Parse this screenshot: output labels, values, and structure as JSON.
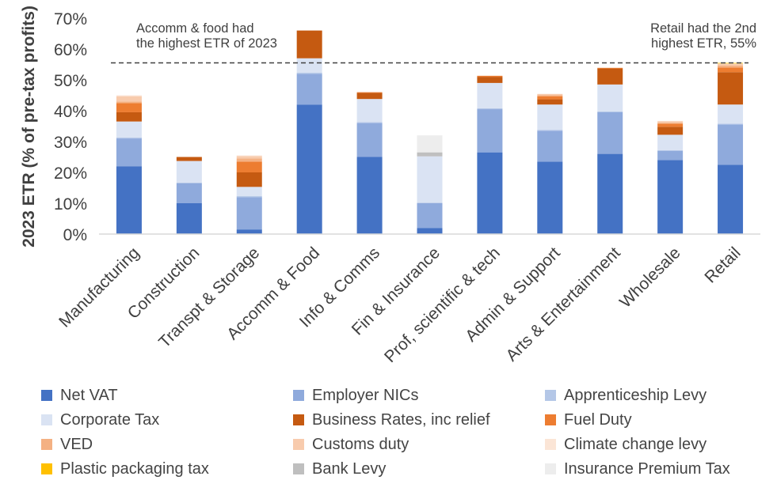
{
  "chart_data": {
    "type": "bar",
    "stacked": true,
    "ylabel": "2023 ETR (% of pre-tax profits)",
    "xlabel": "",
    "ylim": [
      0,
      70
    ],
    "yticks": [
      "0%",
      "10%",
      "20%",
      "30%",
      "40%",
      "50%",
      "60%",
      "70%"
    ],
    "grid": false,
    "legend_position": "bottom",
    "categories": [
      "Manufacturing",
      "Construction",
      "Transpt & Storage",
      "Accomm & Food",
      "Info & Comms",
      "Fin & Insurance",
      "Prof, scientific & tech",
      "Admin & Support",
      "Arts & Entertainment",
      "Wholesale",
      "Retail"
    ],
    "series": [
      {
        "name": "Net VAT",
        "color": "#4472C4",
        "values": [
          22,
          10,
          1.5,
          42,
          25,
          2,
          26.5,
          23.5,
          26,
          24,
          22.5
        ]
      },
      {
        "name": "Employer NICs",
        "color": "#8FAADC",
        "values": [
          9,
          6.5,
          10.5,
          10,
          11,
          8,
          14,
          10,
          13.5,
          3,
          13
        ]
      },
      {
        "name": "Apprenticeship Levy",
        "color": "#B4C7E7",
        "values": [
          0.3,
          0.2,
          0.3,
          0.3,
          0.3,
          0.2,
          0.3,
          0.3,
          0.3,
          0.2,
          0.3
        ]
      },
      {
        "name": "Corporate Tax",
        "color": "#DAE3F3",
        "values": [
          5.2,
          7,
          3,
          4.7,
          7.5,
          15,
          8.2,
          8.2,
          8.7,
          5,
          6.2
        ]
      },
      {
        "name": "Business Rates, inc relief",
        "color": "#C55A11",
        "values": [
          3,
          1.3,
          4.7,
          9,
          2,
          0,
          2,
          1.7,
          5.2,
          2.6,
          10.5
        ]
      },
      {
        "name": "Fuel Duty",
        "color": "#ED7D31",
        "values": [
          3,
          0,
          3.5,
          0,
          0.2,
          0,
          0.3,
          1,
          0.2,
          1,
          1.5
        ]
      },
      {
        "name": "VED",
        "color": "#F4B183",
        "values": [
          0.5,
          0,
          1,
          0,
          0,
          0,
          0,
          0.3,
          0,
          0.3,
          0.7
        ]
      },
      {
        "name": "Customs duty",
        "color": "#F8CBAD",
        "values": [
          1.7,
          0,
          0.8,
          0,
          0,
          0,
          0,
          0.4,
          0,
          0.5,
          0.5
        ]
      },
      {
        "name": "Climate change levy",
        "color": "#FBE5D6",
        "values": [
          0.3,
          0,
          0.2,
          0,
          0,
          0,
          0.2,
          0.1,
          0,
          0.1,
          0.1
        ]
      },
      {
        "name": "Plastic packaging tax",
        "color": "#FFC000",
        "values": [
          0,
          0,
          0,
          0,
          0,
          0,
          0,
          0,
          0,
          0,
          0.2
        ]
      },
      {
        "name": "Bank Levy",
        "color": "#BFBFBF",
        "values": [
          0,
          0,
          0,
          0,
          0,
          1.3,
          0,
          0,
          0,
          0,
          0
        ]
      },
      {
        "name": "Insurance Premium Tax",
        "color": "#EDEDED",
        "values": [
          0,
          0,
          0,
          0,
          0,
          5.5,
          0,
          0,
          0,
          0,
          0
        ]
      }
    ],
    "reference_line": {
      "value": 55.5,
      "style": "dashed"
    },
    "annotations": [
      {
        "line1": "Accomm & food had",
        "line2": "the highest ETR of 2023",
        "placement": "top-left"
      },
      {
        "line1": "Retail had the 2nd",
        "line2": "highest  ETR, 55%",
        "placement": "top-right"
      }
    ]
  }
}
